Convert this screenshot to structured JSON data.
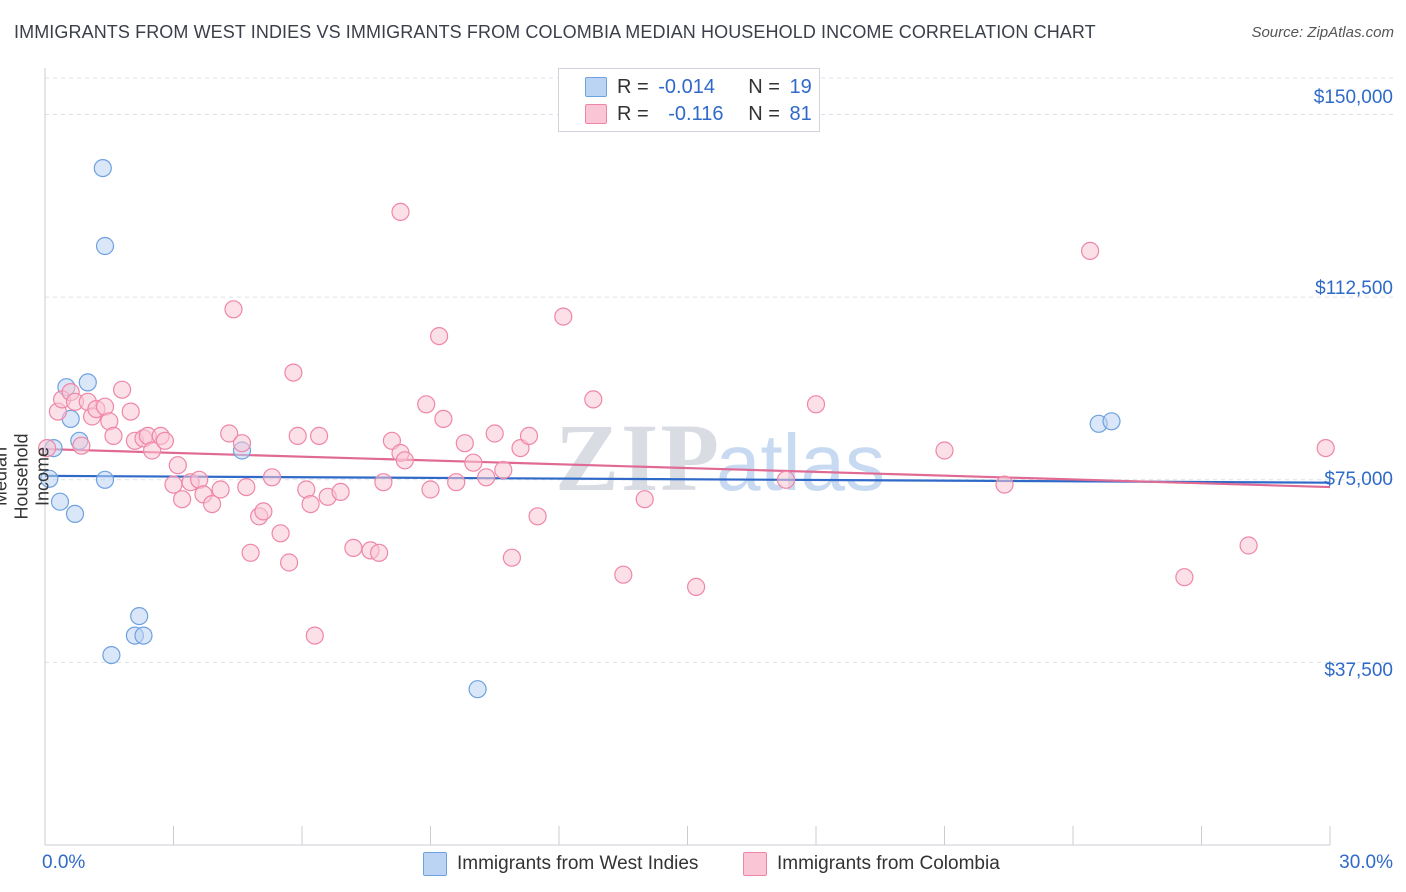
{
  "title": "IMMIGRANTS FROM WEST INDIES VS IMMIGRANTS FROM COLOMBIA MEDIAN HOUSEHOLD INCOME CORRELATION CHART",
  "source": "Source: ZipAtlas.com",
  "watermark": "ZIPatlas",
  "legend": {
    "r_label": "R =",
    "n_label": "N =",
    "series1": {
      "r": "-0.014",
      "n": "19",
      "color": "#aecbf0"
    },
    "series2": {
      "r": "-0.116",
      "n": "81",
      "color": "#f6b8cb"
    }
  },
  "bottom_legend": {
    "series1": "Immigrants from West Indies",
    "series2": "Immigrants from Colombia"
  },
  "axis": {
    "ylabel": "Median Household Income",
    "x_min_label": "0.0%",
    "x_max_label": "30.0%",
    "y_ticks": [
      "$150,000",
      "$112,500",
      "$75,000",
      "$37,500"
    ]
  },
  "chart_data": {
    "type": "scatter",
    "xlabel": "",
    "ylabel": "Median Household Income",
    "xlim": [
      0,
      30
    ],
    "ylim": [
      0,
      157500
    ],
    "y_tick_values": [
      150000,
      112500,
      75000,
      37500
    ],
    "grid": true,
    "series": [
      {
        "name": "Immigrants from West Indies",
        "color": "#6fa1e0",
        "fill": "#bcd4f3",
        "trend": {
          "x": [
            0,
            30
          ],
          "y": [
            75800,
            74400
          ],
          "color": "#2f6ac8"
        },
        "points": [
          [
            0.1,
            75200
          ],
          [
            0.2,
            81500
          ],
          [
            0.35,
            70500
          ],
          [
            0.5,
            94000
          ],
          [
            0.6,
            87500
          ],
          [
            0.7,
            68000
          ],
          [
            0.8,
            83000
          ],
          [
            1.0,
            95000
          ],
          [
            1.35,
            139000
          ],
          [
            1.4,
            75000
          ],
          [
            1.4,
            123000
          ],
          [
            1.55,
            39000
          ],
          [
            2.1,
            43000
          ],
          [
            2.3,
            43000
          ],
          [
            2.2,
            47000
          ],
          [
            4.6,
            81000
          ],
          [
            10.1,
            32000
          ],
          [
            24.6,
            86500
          ],
          [
            24.9,
            87000
          ]
        ]
      },
      {
        "name": "Immigrants from Colombia",
        "color": "#ef86a8",
        "fill": "#f9c6d5",
        "trend": {
          "x": [
            0,
            30
          ],
          "y": [
            81300,
            73500
          ],
          "color": "#e06a94"
        },
        "points": [
          [
            0.05,
            81500
          ],
          [
            0.3,
            89000
          ],
          [
            0.4,
            91500
          ],
          [
            0.6,
            93000
          ],
          [
            0.7,
            91000
          ],
          [
            0.85,
            82000
          ],
          [
            1.0,
            91000
          ],
          [
            1.1,
            88000
          ],
          [
            1.2,
            89500
          ],
          [
            1.4,
            90000
          ],
          [
            1.5,
            87000
          ],
          [
            1.6,
            84000
          ],
          [
            1.8,
            93500
          ],
          [
            2.0,
            89000
          ],
          [
            2.1,
            83000
          ],
          [
            2.3,
            83500
          ],
          [
            2.4,
            84000
          ],
          [
            2.5,
            81000
          ],
          [
            2.7,
            84000
          ],
          [
            2.8,
            83000
          ],
          [
            3.0,
            74000
          ],
          [
            3.1,
            78000
          ],
          [
            3.2,
            71000
          ],
          [
            3.4,
            74500
          ],
          [
            3.6,
            75000
          ],
          [
            3.7,
            72000
          ],
          [
            3.9,
            70000
          ],
          [
            4.1,
            73000
          ],
          [
            4.3,
            84500
          ],
          [
            4.4,
            110000
          ],
          [
            4.6,
            82500
          ],
          [
            4.7,
            73500
          ],
          [
            4.8,
            60000
          ],
          [
            5.0,
            67500
          ],
          [
            5.1,
            68500
          ],
          [
            5.3,
            75500
          ],
          [
            5.5,
            64000
          ],
          [
            5.7,
            58000
          ],
          [
            5.8,
            97000
          ],
          [
            5.9,
            84000
          ],
          [
            6.1,
            73000
          ],
          [
            6.2,
            70000
          ],
          [
            6.4,
            84000
          ],
          [
            6.3,
            43000
          ],
          [
            6.6,
            71500
          ],
          [
            6.9,
            72500
          ],
          [
            7.2,
            61000
          ],
          [
            7.6,
            60500
          ],
          [
            7.8,
            60000
          ],
          [
            7.9,
            74500
          ],
          [
            8.1,
            83000
          ],
          [
            8.3,
            80500
          ],
          [
            8.4,
            79000
          ],
          [
            8.3,
            130000
          ],
          [
            8.9,
            90500
          ],
          [
            9.0,
            73000
          ],
          [
            9.2,
            104500
          ],
          [
            9.3,
            87500
          ],
          [
            9.6,
            74500
          ],
          [
            9.8,
            82500
          ],
          [
            10.0,
            78500
          ],
          [
            10.3,
            75500
          ],
          [
            10.5,
            84500
          ],
          [
            10.7,
            77000
          ],
          [
            10.9,
            59000
          ],
          [
            11.1,
            81500
          ],
          [
            11.3,
            84000
          ],
          [
            11.5,
            67500
          ],
          [
            12.1,
            108500
          ],
          [
            12.8,
            91500
          ],
          [
            13.5,
            55500
          ],
          [
            14.0,
            71000
          ],
          [
            15.2,
            53000
          ],
          [
            17.3,
            75000
          ],
          [
            18.0,
            90500
          ],
          [
            21.0,
            81000
          ],
          [
            22.4,
            74000
          ],
          [
            24.4,
            122000
          ],
          [
            26.6,
            55000
          ],
          [
            28.1,
            61500
          ],
          [
            29.9,
            81500
          ]
        ]
      }
    ]
  }
}
